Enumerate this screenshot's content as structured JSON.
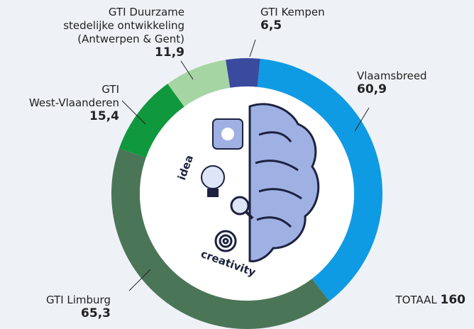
{
  "chart_data": {
    "type": "donut",
    "series": [
      {
        "name": "Vlaamsbreed",
        "color": "#0f9be3",
        "values": [
          60.9
        ],
        "value_labels": [
          "60,9"
        ]
      },
      {
        "name": "GTI Limburg",
        "color": "#4b7557",
        "values": [
          65.3
        ],
        "value_labels": [
          "65,3"
        ]
      },
      {
        "name": "GTI\nWest-Vlaanderen",
        "color": "#0f983e",
        "values": [
          15.4
        ],
        "value_labels": [
          "15,4"
        ]
      },
      {
        "name": "GTI Duurzame\nstedelijke ontwikkeling\n(Antwerpen & Gent)",
        "color": "#a6d5a4",
        "values": [
          11.9
        ],
        "value_labels": [
          "11,9"
        ]
      },
      {
        "name": "GTI Kempen",
        "color": "#3a4a9e",
        "values": [
          6.5
        ],
        "value_labels": [
          "6,5"
        ]
      }
    ],
    "total_label": "TOTAAL",
    "total": 160,
    "illustration_words": [
      "idea",
      "creativity"
    ]
  }
}
